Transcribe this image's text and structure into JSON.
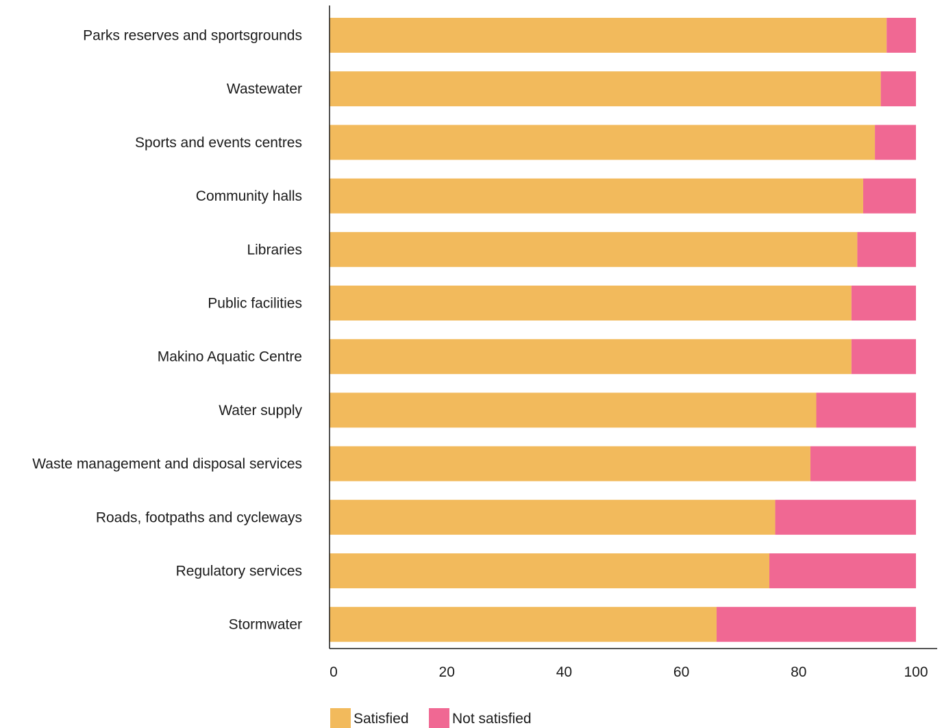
{
  "chart_data": {
    "type": "bar",
    "orientation": "horizontal",
    "stacked": true,
    "categories": [
      "Parks reserves and sportsgrounds",
      "Wastewater",
      "Sports and events centres",
      "Community halls",
      "Libraries",
      "Public facilities",
      "Makino Aquatic Centre",
      "Water supply",
      "Waste management and disposal services",
      "Roads, footpaths and cycleways",
      "Regulatory services",
      "Stormwater"
    ],
    "series": [
      {
        "name": "Satisfied",
        "color": "#F2BA5C",
        "values": [
          95,
          94,
          93,
          91,
          90,
          89,
          89,
          83,
          82,
          76,
          75,
          66
        ]
      },
      {
        "name": "Not satisfied",
        "color": "#F06893",
        "values": [
          5,
          6,
          7,
          9,
          10,
          11,
          11,
          17,
          18,
          24,
          25,
          34
        ]
      }
    ],
    "xlim": [
      0,
      100
    ],
    "xticks": [
      0,
      20,
      40,
      60,
      80,
      100
    ],
    "grid": false,
    "legend": "bottom"
  }
}
